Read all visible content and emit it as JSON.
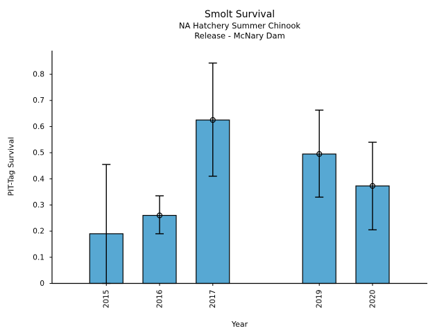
{
  "chart_data": {
    "type": "bar",
    "title": "Smolt Survival",
    "subtitle_line1": "NA Hatchery Summer Chinook",
    "subtitle_line2": "Release - McNary Dam",
    "xlabel": "Year",
    "ylabel": "PIT-Tag Survival",
    "categories": [
      2015,
      2016,
      2017,
      2019,
      2020
    ],
    "xtick_labels": [
      "2015",
      "2016",
      "2017",
      "2019",
      "2020"
    ],
    "values": [
      0.19,
      0.26,
      0.625,
      0.495,
      0.373
    ],
    "error_low": [
      0.0,
      0.19,
      0.41,
      0.33,
      0.205
    ],
    "error_high": [
      0.455,
      0.335,
      0.843,
      0.663,
      0.54
    ],
    "point_marker": [
      false,
      true,
      true,
      true,
      true
    ],
    "xlim": [
      2013.98,
      2021.03
    ],
    "ylim": [
      0,
      0.8905
    ],
    "yticks": [
      0,
      0.1,
      0.2,
      0.3,
      0.4,
      0.5,
      0.6,
      0.7,
      0.8
    ],
    "ytick_labels": [
      "0",
      "0.1",
      "0.2",
      "0.3",
      "0.4",
      "0.5",
      "0.6",
      "0.7",
      "0.8"
    ],
    "grid": false,
    "legend": null,
    "bar_color": "#57a8d3",
    "bar_edge_color": "#000000",
    "error_bar_color": "#000000",
    "axis_color": "#000000",
    "background_color": "#ffffff"
  }
}
